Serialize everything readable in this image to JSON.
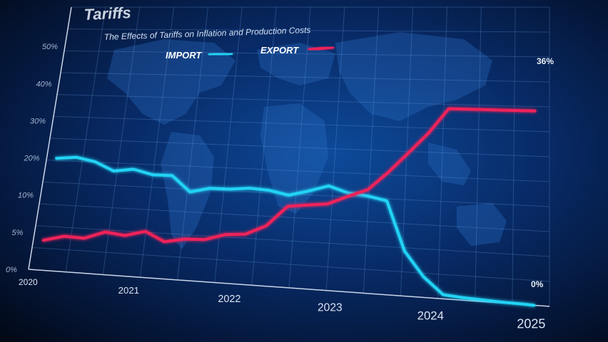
{
  "chart_data": {
    "type": "line",
    "title": "Tariffs",
    "subtitle": "The Effects of Tariffs on Inflation and Production Costs",
    "y_ticks": [
      "0%",
      "5%",
      "10%",
      "20%",
      "30%",
      "40%",
      "50%"
    ],
    "x_ticks": [
      "2020",
      "2021",
      "2022",
      "2023",
      "2024",
      "2025"
    ],
    "legend_position": "top-center",
    "grid": true,
    "x": [
      2020.1,
      2020.3,
      2020.5,
      2020.7,
      2020.9,
      2021.1,
      2021.3,
      2021.5,
      2021.7,
      2021.9,
      2022.1,
      2022.3,
      2022.5,
      2022.7,
      2022.9,
      2023.1,
      2023.3,
      2023.5,
      2023.7,
      2023.9,
      2024.1,
      2024.3,
      2024.5,
      2024.7,
      2024.9,
      2025.0
    ],
    "series": [
      {
        "name": "IMPORT",
        "color": "#22d3f5",
        "values": [
          20,
          20.5,
          19.5,
          17.3,
          18,
          16.8,
          16.8,
          12.8,
          14,
          14,
          14.5,
          14.2,
          13.2,
          14.5,
          16,
          14.5,
          14,
          13,
          5.5,
          2.5,
          0.5,
          0.3,
          0.2,
          0.1,
          0.05,
          0
        ]
      },
      {
        "name": "EXPORT",
        "color": "#f0245a",
        "values": [
          4,
          4.7,
          4.6,
          5.6,
          5.3,
          6,
          4.8,
          5.3,
          5.4,
          6.2,
          6.4,
          7.6,
          10.4,
          11,
          11.5,
          13.6,
          15.5,
          20,
          25,
          30,
          36,
          36,
          36,
          36,
          36,
          36
        ]
      }
    ],
    "end_labels": [
      "36%",
      "0%"
    ]
  }
}
